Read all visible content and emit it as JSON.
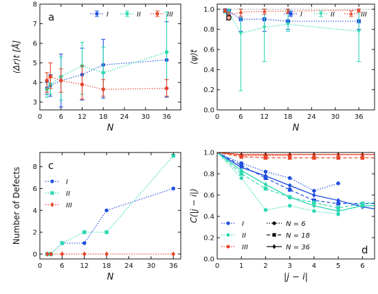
{
  "colors": {
    "I": "#1f4fe0",
    "II": "#2fd9b3",
    "III": "#e8452a"
  },
  "chart_data": [
    {
      "panel": "a",
      "type": "line",
      "xlabel": "N",
      "ylabel": "⟨Δr⟩t [Å]",
      "xlim": [
        0,
        40
      ],
      "ylim": [
        2.6,
        8.0
      ],
      "xticks": [
        0,
        6,
        12,
        18,
        24,
        30,
        36
      ],
      "yticks": [
        3,
        4,
        5,
        6,
        7,
        8
      ],
      "legend": {
        "placement": "top-right",
        "layout": "row"
      },
      "series": [
        {
          "name": "I",
          "marker": "circle",
          "color_key": "I",
          "x": [
            2,
            3,
            6,
            12,
            18,
            36
          ],
          "y": [
            3.7,
            3.85,
            4.1,
            4.4,
            4.9,
            5.15
          ],
          "err_low": [
            3.4,
            3.3,
            2.75,
            3.1,
            3.2,
            3.25
          ],
          "err_high": [
            4.0,
            4.4,
            5.45,
            5.75,
            6.2,
            7.1
          ]
        },
        {
          "name": "II",
          "marker": "circle",
          "color_key": "II",
          "x": [
            2,
            3,
            6,
            12,
            18,
            36
          ],
          "y": [
            3.65,
            3.9,
            4.3,
            4.85,
            4.5,
            5.55
          ],
          "err_low": [
            3.25,
            3.4,
            3.1,
            3.4,
            3.3,
            3.3
          ],
          "err_high": [
            4.05,
            4.35,
            5.3,
            6.05,
            5.8,
            7.6
          ]
        },
        {
          "name": "III",
          "marker": "circle",
          "color_key": "III",
          "x": [
            2,
            3,
            6,
            12,
            18,
            36
          ],
          "y": [
            4.1,
            4.3,
            4.1,
            3.9,
            3.65,
            3.7
          ],
          "err_low": [
            3.5,
            3.7,
            3.5,
            3.15,
            3.3,
            3.3
          ],
          "err_high": [
            4.5,
            5.0,
            4.7,
            4.85,
            4.15,
            4.15
          ]
        }
      ]
    },
    {
      "panel": "b",
      "type": "line",
      "xlabel": "N",
      "ylabel": "⟨ψ⟩t",
      "xlim": [
        0,
        40
      ],
      "ylim": [
        0.0,
        1.05
      ],
      "xticks": [
        0,
        6,
        12,
        18,
        24,
        30,
        36
      ],
      "yticks": [
        0.0,
        0.2,
        0.4,
        0.6,
        0.8,
        1.0
      ],
      "legend": {
        "placement": "top-right",
        "layout": "row"
      },
      "series": [
        {
          "name": "I",
          "marker": "square",
          "color_key": "I",
          "x": [
            2,
            3,
            6,
            12,
            18,
            36
          ],
          "y": [
            0.99,
            0.98,
            0.9,
            0.9,
            0.88,
            0.88
          ],
          "err_low": [
            0.97,
            0.95,
            0.78,
            0.78,
            0.8,
            0.8
          ],
          "err_high": [
            1.0,
            1.0,
            1.0,
            1.0,
            1.0,
            1.0
          ]
        },
        {
          "name": "II",
          "marker": "triangle-down",
          "color_key": "II",
          "x": [
            2,
            3,
            6,
            12,
            18,
            36
          ],
          "y": [
            0.99,
            0.97,
            0.76,
            0.82,
            0.85,
            0.78
          ],
          "err_low": [
            0.96,
            0.93,
            0.19,
            0.48,
            0.78,
            0.48
          ],
          "err_high": [
            1.0,
            1.0,
            1.0,
            1.0,
            0.99,
            1.0
          ]
        },
        {
          "name": "III",
          "marker": "triangle-up",
          "color_key": "III",
          "x": [
            2,
            3,
            6,
            12,
            18,
            36
          ],
          "y": [
            0.99,
            0.94,
            0.97,
            0.98,
            0.98,
            0.99
          ],
          "err_low": [
            0.97,
            0.9,
            0.93,
            0.95,
            0.96,
            0.97
          ],
          "err_high": [
            1.0,
            0.97,
            1.0,
            1.0,
            1.0,
            1.0
          ]
        }
      ]
    },
    {
      "panel": "c",
      "type": "line",
      "xlabel": "N",
      "ylabel": "Number of Defects",
      "xlim": [
        0,
        38
      ],
      "ylim": [
        -0.45,
        9.3
      ],
      "xticks": [
        0,
        6,
        12,
        18,
        24,
        30,
        36
      ],
      "yticks": [
        0,
        2,
        4,
        6,
        8
      ],
      "legend": {
        "placement": "top-left",
        "layout": "column"
      },
      "series": [
        {
          "name": "I",
          "marker": "circle",
          "color_key": "I",
          "x": [
            2,
            3,
            6,
            12,
            18,
            36
          ],
          "y": [
            0,
            0,
            1,
            1,
            4,
            6
          ]
        },
        {
          "name": "II",
          "marker": "square",
          "color_key": "II",
          "x": [
            2,
            3,
            6,
            12,
            18,
            36
          ],
          "y": [
            0,
            0,
            1,
            2,
            2,
            9
          ]
        },
        {
          "name": "III",
          "marker": "diamond",
          "color_key": "III",
          "x": [
            2,
            3,
            6,
            12,
            18,
            36
          ],
          "y": [
            0,
            0,
            0,
            0,
            0,
            0
          ]
        }
      ]
    },
    {
      "panel": "d",
      "type": "line",
      "xlabel": "|j − i|",
      "ylabel": "C(|j − i|)",
      "xlim": [
        0,
        6.5
      ],
      "ylim": [
        0.0,
        1.0
      ],
      "xticks": [
        0,
        1,
        2,
        3,
        4,
        5,
        6
      ],
      "yticks": [
        0.0,
        0.2,
        0.4,
        0.6,
        0.8,
        1.0
      ],
      "legend_colors": {
        "placement": "bottom-left",
        "items": [
          "I",
          "II",
          "III"
        ]
      },
      "legend_styles": {
        "placement": "bottom-center",
        "items": [
          {
            "label": "N = 6",
            "dash": "dotted",
            "marker": "circle"
          },
          {
            "label": "N = 18",
            "dash": "dashed",
            "marker": "square"
          },
          {
            "label": "N = 36",
            "dash": "solid",
            "marker": "diamond"
          }
        ]
      },
      "series": [
        {
          "name": "I, N = 6",
          "color_key": "I",
          "dash": "dotted",
          "marker": "circle",
          "x": [
            0,
            1,
            2,
            3,
            4,
            5
          ],
          "y": [
            1.0,
            0.9,
            0.82,
            0.76,
            0.64,
            0.71
          ]
        },
        {
          "name": "I, N = 18",
          "color_key": "I",
          "dash": "dashed",
          "marker": "square",
          "x": [
            0,
            1,
            2,
            3,
            4,
            5,
            6,
            6.5
          ],
          "y": [
            1.0,
            0.88,
            0.76,
            0.65,
            0.55,
            0.52,
            0.52,
            0.52
          ]
        },
        {
          "name": "I, N = 36",
          "color_key": "I",
          "dash": "solid",
          "marker": "diamond",
          "x": [
            0,
            1,
            2,
            3,
            4,
            5,
            6,
            6.5
          ],
          "y": [
            1.0,
            0.86,
            0.78,
            0.69,
            0.6,
            0.55,
            0.49,
            0.47
          ]
        },
        {
          "name": "II, N = 6",
          "color_key": "II",
          "dash": "dotted",
          "marker": "circle",
          "x": [
            0,
            1,
            2,
            3,
            4,
            5
          ],
          "y": [
            1.0,
            0.76,
            0.46,
            0.5,
            0.45,
            0.42
          ]
        },
        {
          "name": "II, N = 18",
          "color_key": "II",
          "dash": "dashed",
          "marker": "square",
          "x": [
            0,
            1,
            2,
            3,
            4,
            5,
            6,
            6.5
          ],
          "y": [
            1.0,
            0.8,
            0.66,
            0.58,
            0.53,
            0.48,
            0.52,
            0.53
          ]
        },
        {
          "name": "II, N = 36",
          "color_key": "II",
          "dash": "solid",
          "marker": "diamond",
          "x": [
            0,
            1,
            2,
            3,
            4,
            5,
            6,
            6.5
          ],
          "y": [
            1.0,
            0.83,
            0.7,
            0.58,
            0.5,
            0.45,
            0.5,
            0.5
          ]
        },
        {
          "name": "III, N = 6",
          "color_key": "III",
          "dash": "dotted",
          "marker": "circle",
          "x": [
            0,
            1,
            2,
            3
          ],
          "y": [
            1.0,
            0.97,
            0.97,
            0.97
          ]
        },
        {
          "name": "III, N = 18",
          "color_key": "III",
          "dash": "dashed",
          "marker": "square",
          "x": [
            0,
            1,
            2,
            3,
            4,
            5,
            6,
            6.5
          ],
          "y": [
            1.0,
            0.96,
            0.95,
            0.95,
            0.95,
            0.95,
            0.95,
            0.95
          ]
        },
        {
          "name": "III, N = 36",
          "color_key": "III",
          "dash": "solid",
          "marker": "diamond",
          "x": [
            0,
            1,
            2,
            3,
            4,
            5,
            6,
            6.5
          ],
          "y": [
            1.0,
            0.98,
            0.98,
            0.98,
            0.98,
            0.98,
            0.98,
            0.98
          ]
        }
      ]
    }
  ]
}
